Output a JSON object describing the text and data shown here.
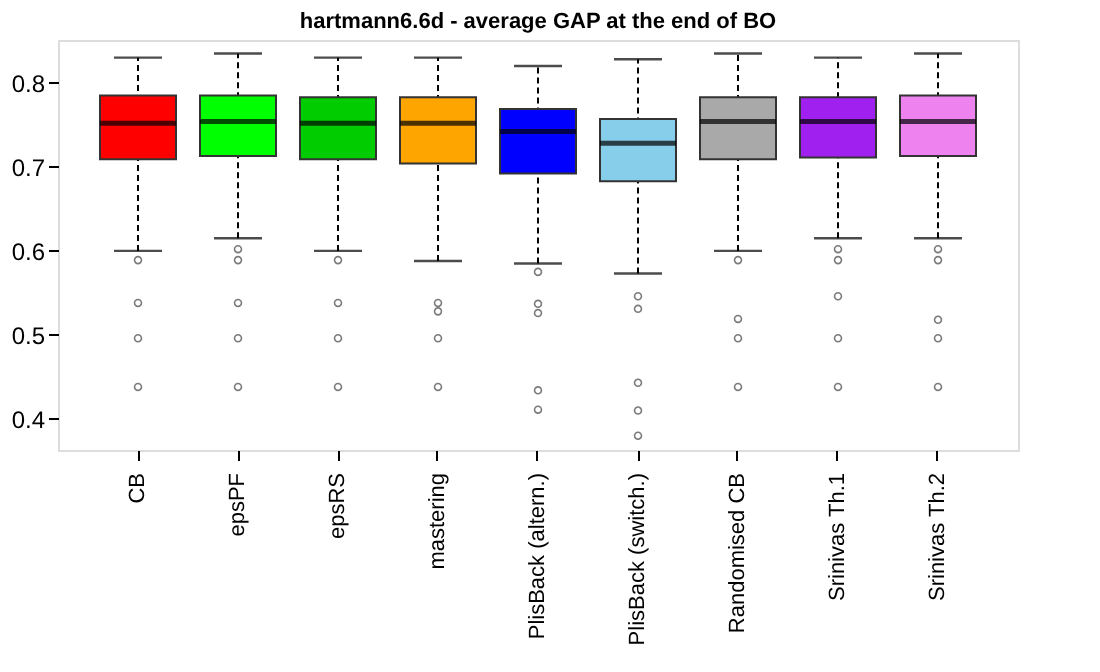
{
  "chart_data": {
    "type": "box",
    "title": "hartmann6.6d - average GAP at the end of BO",
    "categories": [
      "CB",
      "epsPF",
      "epsRS",
      "mastering",
      "PlisBack (altern.)",
      "PlisBack (switch.)",
      "Randomised CB",
      "Srinivas Th.1",
      "Srinivas Th.2"
    ],
    "colors": [
      "#ff0000",
      "#00ff00",
      "#00cc00",
      "#ffa500",
      "#0000ff",
      "#87ceeb",
      "#a9a9a9",
      "#a020f0",
      "#ee82ee"
    ],
    "boxes": [
      {
        "low": 0.6,
        "q1": 0.709,
        "median": 0.752,
        "q3": 0.785,
        "high": 0.83,
        "outliers": [
          0.589,
          0.538,
          0.496,
          0.438
        ]
      },
      {
        "low": 0.615,
        "q1": 0.713,
        "median": 0.754,
        "q3": 0.785,
        "high": 0.835,
        "outliers": [
          0.602,
          0.589,
          0.538,
          0.496,
          0.438
        ]
      },
      {
        "low": 0.6,
        "q1": 0.709,
        "median": 0.752,
        "q3": 0.783,
        "high": 0.83,
        "outliers": [
          0.589,
          0.538,
          0.496,
          0.438
        ]
      },
      {
        "low": 0.588,
        "q1": 0.704,
        "median": 0.752,
        "q3": 0.783,
        "high": 0.83,
        "outliers": [
          0.538,
          0.528,
          0.496,
          0.438
        ]
      },
      {
        "low": 0.585,
        "q1": 0.692,
        "median": 0.742,
        "q3": 0.769,
        "high": 0.82,
        "outliers": [
          0.575,
          0.537,
          0.526,
          0.434,
          0.411
        ]
      },
      {
        "low": 0.573,
        "q1": 0.683,
        "median": 0.728,
        "q3": 0.757,
        "high": 0.828,
        "outliers": [
          0.546,
          0.531,
          0.443,
          0.41,
          0.38
        ]
      },
      {
        "low": 0.6,
        "q1": 0.709,
        "median": 0.754,
        "q3": 0.783,
        "high": 0.835,
        "outliers": [
          0.589,
          0.519,
          0.496,
          0.438
        ]
      },
      {
        "low": 0.615,
        "q1": 0.711,
        "median": 0.754,
        "q3": 0.783,
        "high": 0.83,
        "outliers": [
          0.602,
          0.589,
          0.546,
          0.496,
          0.438
        ]
      },
      {
        "low": 0.615,
        "q1": 0.713,
        "median": 0.754,
        "q3": 0.785,
        "high": 0.835,
        "outliers": [
          0.602,
          0.589,
          0.518,
          0.496,
          0.438
        ]
      }
    ],
    "ylim": [
      0.363,
      0.851
    ],
    "yticks": [
      0.4,
      0.5,
      0.6,
      0.7,
      0.8
    ],
    "grid": false,
    "legend": false
  }
}
